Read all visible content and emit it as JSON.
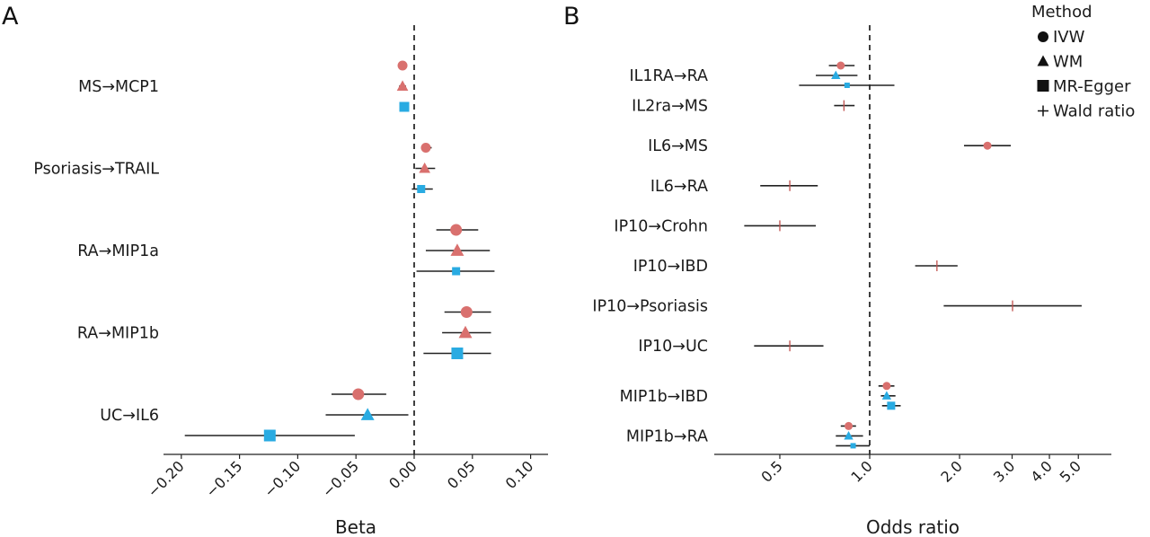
{
  "chart_data": [
    {
      "panel": "A",
      "type": "scatter",
      "subtype": "forest",
      "title": "",
      "xlabel": "Beta",
      "ylabel": "",
      "xscale": "linear",
      "xlim": [
        -0.215,
        0.115
      ],
      "reference_line": 0,
      "xticks": [
        -0.2,
        -0.15,
        -0.1,
        -0.05,
        0.0,
        0.05,
        0.1
      ],
      "xtick_labels": [
        "−0.20",
        "−0.15",
        "−0.10",
        "−0.05",
        "0.00",
        "0.05",
        "0.10"
      ],
      "grid": false,
      "rows": [
        {
          "label": "MS→MCP1",
          "points": [
            {
              "method": "IVW",
              "est": -0.01,
              "lo": -0.012,
              "hi": -0.008,
              "color": "#d9706e",
              "size": "medium"
            },
            {
              "method": "WM",
              "est": -0.01,
              "lo": -0.013,
              "hi": -0.007,
              "color": "#d9706e",
              "size": "medium"
            },
            {
              "method": "MR-Egger",
              "est": -0.0085,
              "lo": -0.012,
              "hi": -0.005,
              "color": "#29abe2",
              "size": "medium"
            }
          ]
        },
        {
          "label": "Psoriasis→TRAIL",
          "points": [
            {
              "method": "IVW",
              "est": 0.01,
              "lo": 0.006,
              "hi": 0.015,
              "color": "#d9706e",
              "size": "medium"
            },
            {
              "method": "WM",
              "est": 0.009,
              "lo": 0.001,
              "hi": 0.018,
              "color": "#d9706e",
              "size": "medium"
            },
            {
              "method": "MR-Egger",
              "est": 0.006,
              "lo": -0.002,
              "hi": 0.016,
              "color": "#29abe2",
              "size": "small"
            }
          ]
        },
        {
          "label": "RA→MIP1a",
          "points": [
            {
              "method": "IVW",
              "est": 0.036,
              "lo": 0.019,
              "hi": 0.055,
              "color": "#d9706e",
              "size": "large"
            },
            {
              "method": "WM",
              "est": 0.037,
              "lo": 0.01,
              "hi": 0.065,
              "color": "#d9706e",
              "size": "large"
            },
            {
              "method": "MR-Egger",
              "est": 0.036,
              "lo": 0.002,
              "hi": 0.069,
              "color": "#29abe2",
              "size": "small"
            }
          ]
        },
        {
          "label": "RA→MIP1b",
          "points": [
            {
              "method": "IVW",
              "est": 0.045,
              "lo": 0.026,
              "hi": 0.066,
              "color": "#d9706e",
              "size": "large"
            },
            {
              "method": "WM",
              "est": 0.044,
              "lo": 0.024,
              "hi": 0.066,
              "color": "#d9706e",
              "size": "large"
            },
            {
              "method": "MR-Egger",
              "est": 0.037,
              "lo": 0.008,
              "hi": 0.066,
              "color": "#29abe2",
              "size": "large"
            }
          ]
        },
        {
          "label": "UC→IL6",
          "points": [
            {
              "method": "IVW",
              "est": -0.048,
              "lo": -0.071,
              "hi": -0.024,
              "color": "#d9706e",
              "size": "large"
            },
            {
              "method": "WM",
              "est": -0.04,
              "lo": -0.076,
              "hi": -0.005,
              "color": "#29abe2",
              "size": "large"
            },
            {
              "method": "MR-Egger",
              "est": -0.124,
              "lo": -0.197,
              "hi": -0.051,
              "color": "#29abe2",
              "size": "large"
            }
          ]
        }
      ]
    },
    {
      "panel": "B",
      "type": "scatter",
      "subtype": "forest",
      "title": "",
      "xlabel": "Odds ratio",
      "ylabel": "",
      "xscale": "log",
      "xlim": [
        0.45,
        6.0
      ],
      "reference_line": 1.0,
      "xticks": [
        0.5,
        1.0,
        2.0,
        3.0,
        4.0,
        5.0
      ],
      "xtick_labels": [
        "0.5",
        "1.0",
        "2.0",
        "3.0",
        "4.0",
        "5.0"
      ],
      "grid": false,
      "rows": [
        {
          "label": "IL1RA→RA",
          "points": [
            {
              "method": "IVW",
              "est": 0.8,
              "lo": 0.73,
              "hi": 0.89,
              "color": "#d9706e",
              "size": "small"
            },
            {
              "method": "WM",
              "est": 0.77,
              "lo": 0.66,
              "hi": 0.91,
              "color": "#29abe2",
              "size": "small"
            },
            {
              "method": "MR-Egger",
              "est": 0.84,
              "lo": 0.58,
              "hi": 1.21,
              "color": "#29abe2",
              "size": "tiny"
            }
          ]
        },
        {
          "label": "IL2ra→MS",
          "points": [
            {
              "method": "Wald ratio",
              "est": 0.82,
              "lo": 0.76,
              "hi": 0.89,
              "color": "#c0504d",
              "size": "small"
            }
          ]
        },
        {
          "label": "IL6→MS",
          "points": [
            {
              "method": "IVW",
              "est": 2.48,
              "lo": 2.07,
              "hi": 2.97,
              "color": "#d9706e",
              "size": "small"
            }
          ]
        },
        {
          "label": "IL6→RA",
          "points": [
            {
              "method": "Wald ratio",
              "est": 0.54,
              "lo": 0.43,
              "hi": 0.67,
              "color": "#c0504d",
              "size": "small"
            }
          ]
        },
        {
          "label": "IP10→Crohn",
          "points": [
            {
              "method": "Wald ratio",
              "est": 0.5,
              "lo": 0.38,
              "hi": 0.66,
              "color": "#c0504d",
              "size": "small"
            }
          ]
        },
        {
          "label": "IP10→IBD",
          "points": [
            {
              "method": "Wald ratio",
              "est": 1.68,
              "lo": 1.42,
              "hi": 1.97,
              "color": "#c0504d",
              "size": "small"
            }
          ]
        },
        {
          "label": "IP10→Psoriasis",
          "points": [
            {
              "method": "Wald ratio",
              "est": 3.01,
              "lo": 1.77,
              "hi": 5.13,
              "color": "#c0504d",
              "size": "small"
            }
          ]
        },
        {
          "label": "IP10→UC",
          "points": [
            {
              "method": "Wald ratio",
              "est": 0.54,
              "lo": 0.41,
              "hi": 0.7,
              "color": "#c0504d",
              "size": "small"
            }
          ]
        },
        {
          "label": "MIP1b→IBD",
          "points": [
            {
              "method": "IVW",
              "est": 1.14,
              "lo": 1.07,
              "hi": 1.21,
              "color": "#d9706e",
              "size": "small"
            },
            {
              "method": "WM",
              "est": 1.14,
              "lo": 1.09,
              "hi": 1.22,
              "color": "#29abe2",
              "size": "small"
            },
            {
              "method": "MR-Egger",
              "est": 1.18,
              "lo": 1.1,
              "hi": 1.27,
              "color": "#29abe2",
              "size": "small"
            }
          ]
        },
        {
          "label": "MIP1b→RA",
          "points": [
            {
              "method": "IVW",
              "est": 0.85,
              "lo": 0.8,
              "hi": 0.9,
              "color": "#d9706e",
              "size": "small"
            },
            {
              "method": "WM",
              "est": 0.85,
              "lo": 0.77,
              "hi": 0.95,
              "color": "#29abe2",
              "size": "small"
            },
            {
              "method": "MR-Egger",
              "est": 0.88,
              "lo": 0.77,
              "hi": 1.0,
              "color": "#29abe2",
              "size": "tiny"
            }
          ]
        }
      ]
    }
  ],
  "legend": {
    "title": "Method",
    "placement": "top-right",
    "items": [
      {
        "symbol": "circle",
        "label": "IVW"
      },
      {
        "symbol": "triangle",
        "label": "WM"
      },
      {
        "symbol": "square",
        "label": "MR-Egger"
      },
      {
        "symbol": "plus",
        "label": "Wald ratio"
      }
    ]
  }
}
